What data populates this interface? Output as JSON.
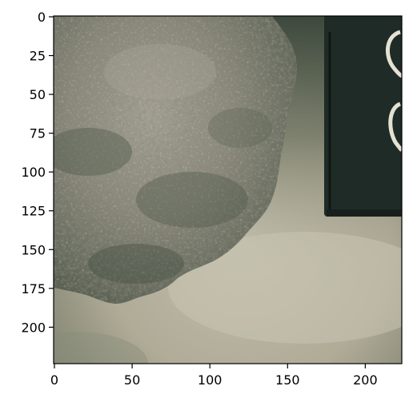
{
  "figure": {
    "kind": "image-with-pixel-axes",
    "axes_frame_color": "#000000",
    "tick_color": "#000000"
  },
  "image": {
    "content": "photo of grey granular rock fragment on light surface beside dark object with white markings",
    "palette": {
      "background_light": "#bcb7a4",
      "background_dark": "#2f3a32",
      "rock_light": "#9a958a",
      "rock_mid": "#7c7a6e",
      "rock_dark": "#4c5146",
      "dark_object": "#1f2b26",
      "marking": "#e9e6da"
    }
  },
  "axes": {
    "x": {
      "ticks": [
        0,
        50,
        100,
        150,
        200
      ],
      "tick_labels": [
        "0",
        "50",
        "100",
        "150",
        "200"
      ],
      "range": [
        0,
        224
      ]
    },
    "y": {
      "ticks": [
        0,
        25,
        50,
        75,
        100,
        125,
        150,
        175,
        200
      ],
      "tick_labels": [
        "0",
        "25",
        "50",
        "75",
        "100",
        "125",
        "150",
        "175",
        "200"
      ],
      "range": [
        0,
        224
      ],
      "inverted": true
    }
  }
}
